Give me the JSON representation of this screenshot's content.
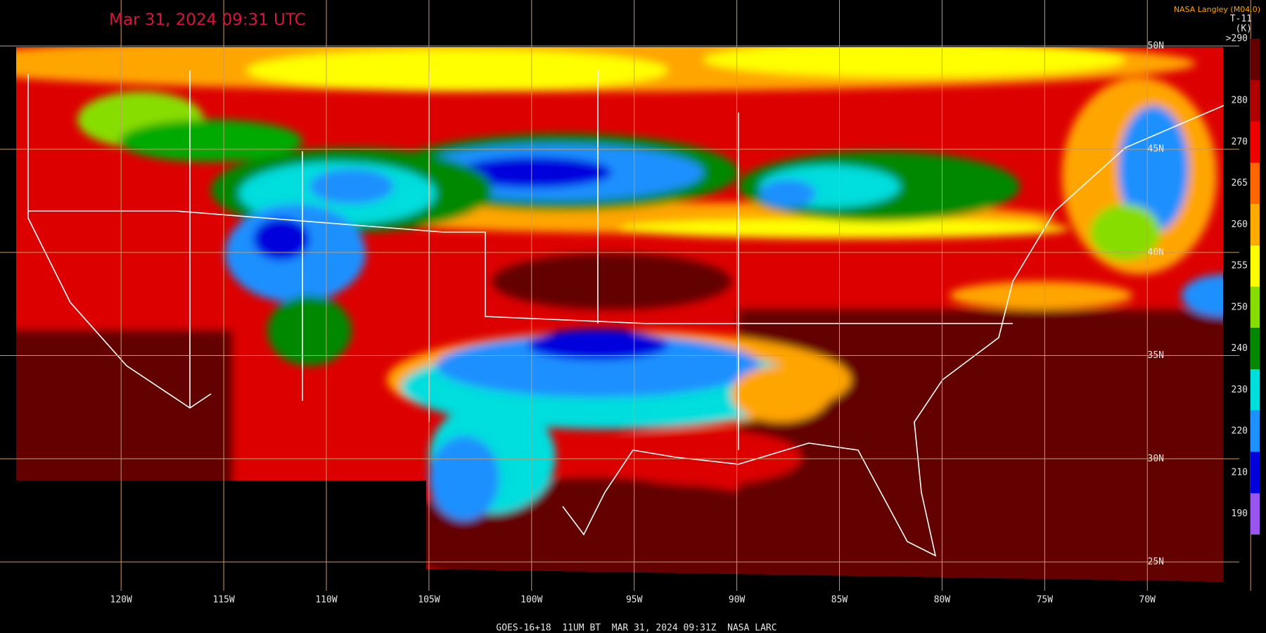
{
  "header": {
    "timestamp": "Mar 31, 2024 09:31 UTC",
    "credit": "NASA Langley (M04.0)",
    "product": "T-11",
    "unit": "(K)"
  },
  "colorbar": {
    "labels": [
      ">290",
      "280",
      "270",
      "265",
      "260",
      "255",
      "250",
      "240",
      "230",
      "220",
      "210",
      "190"
    ]
  },
  "longitudes": [
    "120W",
    "115W",
    "110W",
    "105W",
    "100W",
    "95W",
    "90W",
    "85W",
    "80W",
    "75W",
    "70W"
  ],
  "latitudes": [
    "50N",
    "45N",
    "40N",
    "35N",
    "30N",
    "25N"
  ],
  "footer": "GOES-16+18  11UM BT  MAR 31, 2024 09:31Z  NASA LARC"
}
